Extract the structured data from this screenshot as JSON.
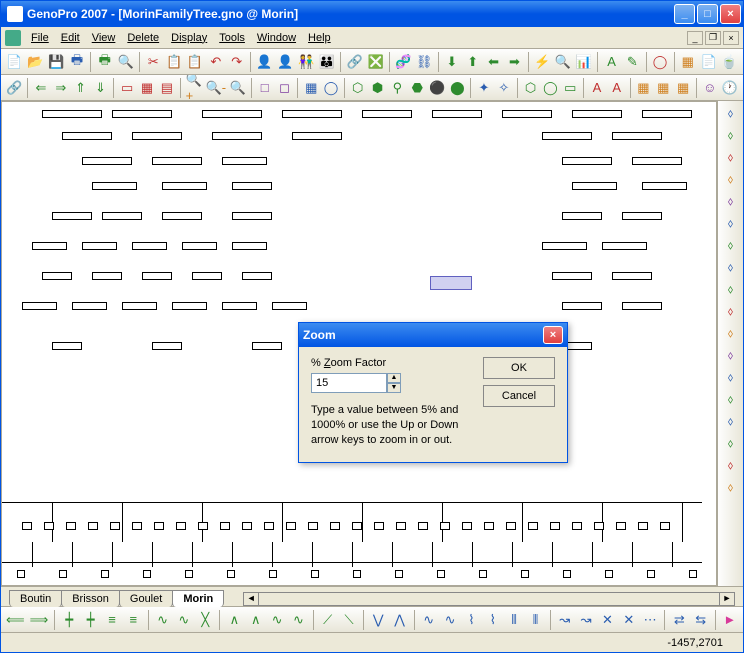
{
  "title": "GenoPro 2007 - [MorinFamilyTree.gno @ Morin]",
  "menu": {
    "file": "File",
    "edit": "Edit",
    "view": "View",
    "delete": "Delete",
    "display": "Display",
    "tools": "Tools",
    "window": "Window",
    "help": "Help"
  },
  "toolbar1": [
    "📄",
    "📂",
    "💾",
    "🖶",
    "|",
    "🖶",
    "🔍",
    "|",
    "✂",
    "📋",
    "📋",
    "↶",
    "↷",
    "|",
    "👤",
    "👤",
    "👫",
    "👪",
    "|",
    "🔗",
    "❎",
    "|",
    "🧬",
    "⛓",
    "|",
    "⬇",
    "⬆",
    "⬅",
    "➡",
    "|",
    "⚡",
    "🔍",
    "📊",
    "|",
    "A",
    "✎",
    "|",
    "◯",
    "|",
    "▦",
    "📄",
    "🍵"
  ],
  "toolbar2": [
    "🔗",
    "|",
    "⇐",
    "⇒",
    "⇑",
    "⇓",
    "|",
    "▭",
    "▦",
    "▤",
    "|",
    "🔍+",
    "🔍-",
    "🔍",
    "|",
    "□",
    "◻",
    "|",
    "▦",
    "◯",
    "|",
    "⬡",
    "⬢",
    "⚲",
    "⬣",
    "⚫",
    "⬤",
    "|",
    "✦",
    "✧",
    "|",
    "⬡",
    "◯",
    "▭",
    "|",
    "A",
    "A",
    "|",
    "▦",
    "▦",
    "▦",
    "|",
    "☺",
    "🕐"
  ],
  "rightbar_count": 18,
  "sheets": {
    "tabs": [
      "Boutin",
      "Brisson",
      "Goulet",
      "Morin"
    ],
    "active": "Morin"
  },
  "bottombar": [
    "⟸",
    "⟹",
    "|",
    "┿",
    "┿",
    "≡",
    "≡",
    "|",
    "∿",
    "∿",
    "╳",
    "|",
    "∧",
    "∧",
    "∿",
    "∿",
    "|",
    "⟋",
    "⟍",
    "|",
    "⋁",
    "⋀",
    "|",
    "∿",
    "∿",
    "⌇",
    "⌇",
    "⦀",
    "⦀",
    "|",
    "↝",
    "↝",
    "✕",
    "✕",
    "⋯",
    "|",
    "⇄",
    "⇆",
    "|",
    "►"
  ],
  "status": {
    "coords": "-1457,2701"
  },
  "dialog": {
    "title": "Zoom",
    "label": "% Zoom Factor",
    "value": "15",
    "hint": "Type a value between 5% and 1000% or use the Up or Down arrow keys to zoom in or out.",
    "ok": "OK",
    "cancel": "Cancel"
  },
  "tree_boxes": [
    [
      40,
      8,
      60,
      8
    ],
    [
      110,
      8,
      60,
      8
    ],
    [
      200,
      8,
      60,
      8
    ],
    [
      280,
      8,
      60,
      8
    ],
    [
      360,
      8,
      50,
      8
    ],
    [
      430,
      8,
      50,
      8
    ],
    [
      500,
      8,
      50,
      8
    ],
    [
      570,
      8,
      50,
      8
    ],
    [
      640,
      8,
      50,
      8
    ],
    [
      60,
      30,
      50,
      8
    ],
    [
      130,
      30,
      50,
      8
    ],
    [
      210,
      30,
      50,
      8
    ],
    [
      290,
      30,
      50,
      8
    ],
    [
      540,
      30,
      50,
      8
    ],
    [
      610,
      30,
      50,
      8
    ],
    [
      80,
      55,
      50,
      8
    ],
    [
      150,
      55,
      50,
      8
    ],
    [
      220,
      55,
      45,
      8
    ],
    [
      560,
      55,
      50,
      8
    ],
    [
      630,
      55,
      50,
      8
    ],
    [
      90,
      80,
      45,
      8
    ],
    [
      160,
      80,
      45,
      8
    ],
    [
      230,
      80,
      40,
      8
    ],
    [
      570,
      80,
      45,
      8
    ],
    [
      640,
      80,
      45,
      8
    ],
    [
      50,
      110,
      40,
      8
    ],
    [
      100,
      110,
      40,
      8
    ],
    [
      160,
      110,
      40,
      8
    ],
    [
      230,
      110,
      40,
      8
    ],
    [
      560,
      110,
      40,
      8
    ],
    [
      620,
      110,
      40,
      8
    ],
    [
      30,
      140,
      35,
      8
    ],
    [
      80,
      140,
      35,
      8
    ],
    [
      130,
      140,
      35,
      8
    ],
    [
      180,
      140,
      35,
      8
    ],
    [
      230,
      140,
      35,
      8
    ],
    [
      540,
      140,
      45,
      8
    ],
    [
      600,
      140,
      45,
      8
    ],
    [
      40,
      170,
      30,
      8
    ],
    [
      90,
      170,
      30,
      8
    ],
    [
      140,
      170,
      30,
      8
    ],
    [
      190,
      170,
      30,
      8
    ],
    [
      240,
      170,
      30,
      8
    ],
    [
      550,
      170,
      40,
      8
    ],
    [
      610,
      170,
      40,
      8
    ],
    [
      20,
      200,
      35,
      8
    ],
    [
      70,
      200,
      35,
      8
    ],
    [
      120,
      200,
      35,
      8
    ],
    [
      170,
      200,
      35,
      8
    ],
    [
      220,
      200,
      35,
      8
    ],
    [
      270,
      200,
      35,
      8
    ],
    [
      560,
      200,
      40,
      8
    ],
    [
      620,
      200,
      40,
      8
    ],
    [
      50,
      240,
      30,
      8
    ],
    [
      150,
      240,
      30,
      8
    ],
    [
      250,
      240,
      30,
      8
    ],
    [
      350,
      240,
      30,
      8
    ],
    [
      550,
      240,
      40,
      8
    ],
    [
      430,
      175,
      40,
      12
    ]
  ],
  "tree_lines": [
    [
      0,
      400,
      700,
      1
    ],
    [
      0,
      460,
      700,
      1
    ],
    [
      50,
      400,
      1,
      40
    ],
    [
      120,
      400,
      1,
      40
    ],
    [
      200,
      400,
      1,
      40
    ],
    [
      280,
      400,
      1,
      40
    ],
    [
      360,
      400,
      1,
      40
    ],
    [
      440,
      400,
      1,
      40
    ],
    [
      520,
      400,
      1,
      40
    ],
    [
      600,
      400,
      1,
      40
    ],
    [
      680,
      400,
      1,
      40
    ],
    [
      30,
      440,
      1,
      25
    ],
    [
      70,
      440,
      1,
      25
    ],
    [
      110,
      440,
      1,
      25
    ],
    [
      150,
      440,
      1,
      25
    ],
    [
      190,
      440,
      1,
      25
    ],
    [
      230,
      440,
      1,
      25
    ],
    [
      270,
      440,
      1,
      25
    ],
    [
      310,
      440,
      1,
      25
    ],
    [
      350,
      440,
      1,
      25
    ],
    [
      390,
      440,
      1,
      25
    ],
    [
      430,
      440,
      1,
      25
    ],
    [
      470,
      440,
      1,
      25
    ],
    [
      510,
      440,
      1,
      25
    ],
    [
      550,
      440,
      1,
      25
    ],
    [
      590,
      440,
      1,
      25
    ],
    [
      630,
      440,
      1,
      25
    ],
    [
      670,
      440,
      1,
      25
    ]
  ]
}
